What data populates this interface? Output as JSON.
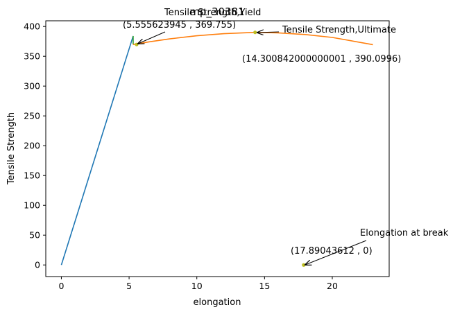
{
  "chart_data": {
    "type": "line",
    "title": "mp_30381",
    "xlabel": "elongation",
    "ylabel": "Tensile Strength",
    "xlim": [
      -1.15,
      24.2
    ],
    "ylim": [
      -19.5,
      409.5
    ],
    "xticks": [
      0,
      5,
      10,
      15,
      20
    ],
    "yticks": [
      0,
      50,
      100,
      150,
      200,
      250,
      300,
      350,
      400
    ],
    "grid": false,
    "series": [
      {
        "color": "#1f77b4",
        "x": [
          0,
          5.3
        ],
        "y": [
          0,
          384
        ]
      },
      {
        "color": "#2ca02c",
        "x": [
          5.3,
          5.3
        ],
        "y": [
          384,
          369.755
        ]
      },
      {
        "color": "#ff7f0e",
        "x": [
          5.3,
          6.5,
          8,
          10,
          12,
          14.3,
          16,
          18,
          20,
          23
        ],
        "y": [
          369.755,
          374.3,
          379.2,
          384.4,
          387.9,
          390.0996,
          389.2,
          386.5,
          381.6,
          369.5
        ]
      }
    ],
    "points": [
      {
        "x": 5.555623945,
        "y": 369.755,
        "color": "#bcbd22"
      },
      {
        "x": 14.300842,
        "y": 390.0996,
        "color": "#bcbd22"
      },
      {
        "x": 17.89043612,
        "y": 0,
        "color": "#bcbd22"
      }
    ],
    "annotations": [
      {
        "name": "yield",
        "label": "Tensile Strength,Yield",
        "coords": "(5.555623945 , 369.755)",
        "x": 5.555623945,
        "y": 369.755
      },
      {
        "name": "ultimate",
        "label": "Tensile Strength,Ultimate",
        "coords": "(14.300842000000001 , 390.0996)",
        "x": 14.300842,
        "y": 390.0996
      },
      {
        "name": "break",
        "label": "Elongation at break",
        "coords": "(17.89043612 , 0)",
        "x": 17.89043612,
        "y": 0
      }
    ]
  }
}
